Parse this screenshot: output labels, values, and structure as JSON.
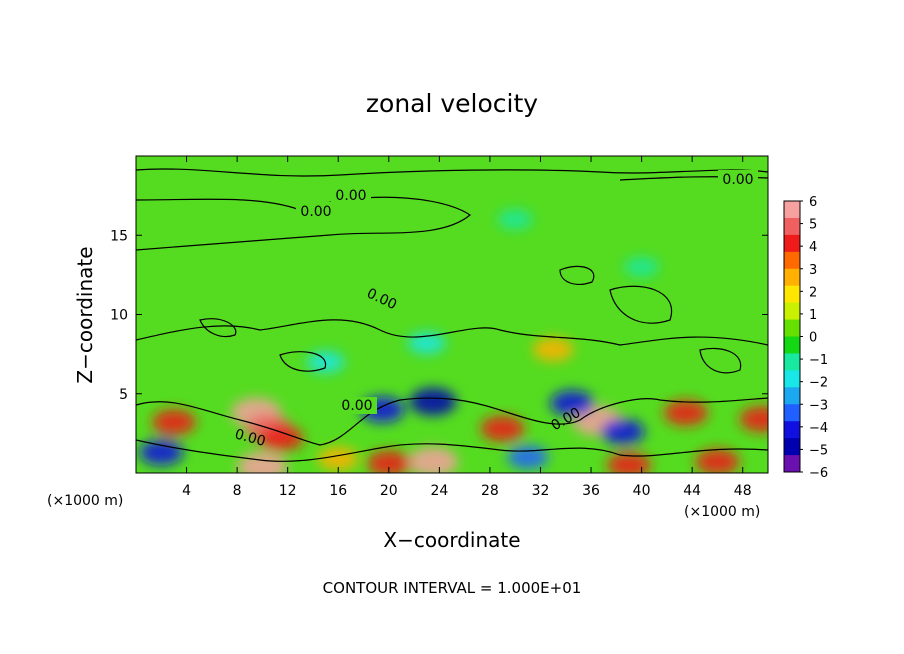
{
  "chart_data": {
    "type": "heatmap",
    "title": "zonal velocity",
    "xlabel": "X−coordinate",
    "ylabel": "Z−coordinate",
    "x_unit_label": "(×1000 m)",
    "y_unit_label": "(×1000 m)",
    "xlim": [
      0,
      50
    ],
    "ylim": [
      0,
      20
    ],
    "x_ticks": [
      4,
      8,
      12,
      16,
      20,
      24,
      28,
      32,
      36,
      40,
      44,
      48
    ],
    "y_ticks": [
      5,
      10,
      15
    ],
    "colorbar": {
      "ticks": [
        "6",
        "5",
        "4",
        "3",
        "2",
        "1",
        "0",
        "−1",
        "−2",
        "−3",
        "−4",
        "−5",
        "−6"
      ],
      "range": [
        -6,
        6
      ],
      "colors": [
        "#f7a0a0",
        "#f06060",
        "#ef1a1a",
        "#ff6a00",
        "#ffb000",
        "#ffe600",
        "#c8f000",
        "#66e000",
        "#14d814",
        "#19e8a0",
        "#19e6e6",
        "#1ca8f0",
        "#2060ff",
        "#1010e0",
        "#0000b0",
        "#6a0fb0"
      ]
    },
    "contour_labels": [
      "0.00",
      "0.00",
      "0.00",
      "0.00",
      "0.00",
      "0.00",
      "0.00"
    ],
    "footer": "CONTOUR INTERVAL = 1.000E+01",
    "features": [
      {
        "x": 9.5,
        "z": 3.8,
        "value": 6
      },
      {
        "x": 10.5,
        "z": 2.8,
        "value": 5
      },
      {
        "x": 3.0,
        "z": 3.2,
        "value": 4
      },
      {
        "x": 11.5,
        "z": 2.2,
        "value": 4
      },
      {
        "x": 23.5,
        "z": 4.5,
        "value": -5
      },
      {
        "x": 19.5,
        "z": 4.0,
        "value": -4
      },
      {
        "x": 23.5,
        "z": 0.7,
        "value": 6
      },
      {
        "x": 20.0,
        "z": 0.6,
        "value": 4
      },
      {
        "x": 29.0,
        "z": 2.8,
        "value": 4
      },
      {
        "x": 36.5,
        "z": 3.3,
        "value": 6
      },
      {
        "x": 34.5,
        "z": 4.4,
        "value": -4
      },
      {
        "x": 38.5,
        "z": 2.6,
        "value": -4
      },
      {
        "x": 43.5,
        "z": 3.8,
        "value": 4
      },
      {
        "x": 49.5,
        "z": 3.4,
        "value": 4
      },
      {
        "x": 2.0,
        "z": 1.3,
        "value": -4
      },
      {
        "x": 10.0,
        "z": 0.4,
        "value": 6
      },
      {
        "x": 16.0,
        "z": 0.9,
        "value": 3
      },
      {
        "x": 31.0,
        "z": 1.0,
        "value": -3
      },
      {
        "x": 39.0,
        "z": 0.5,
        "value": 4
      },
      {
        "x": 46.0,
        "z": 0.7,
        "value": 4
      },
      {
        "x": 33.0,
        "z": 7.8,
        "value": 3
      },
      {
        "x": 23.0,
        "z": 8.2,
        "value": -2
      },
      {
        "x": 15.0,
        "z": 7.0,
        "value": -2
      },
      {
        "x": 30.0,
        "z": 16.0,
        "value": -1
      },
      {
        "x": 40.0,
        "z": 13.0,
        "value": -1
      }
    ]
  }
}
